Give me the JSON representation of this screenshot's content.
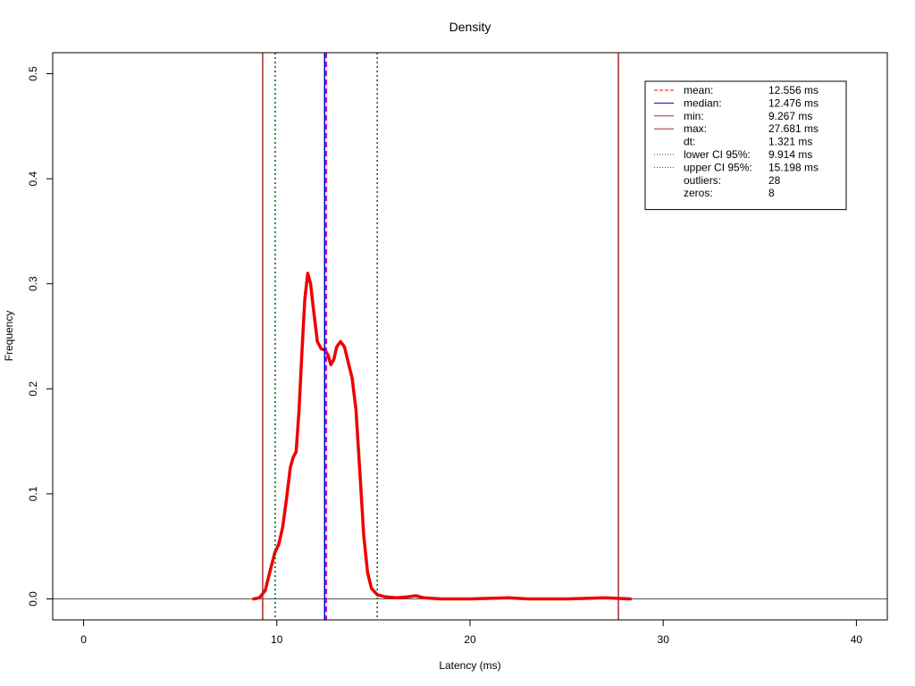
{
  "chart_data": {
    "type": "line",
    "title": "Density",
    "xlabel": "Latency (ms)",
    "ylabel": "Frequency",
    "xlim": [
      -1.6,
      41.6
    ],
    "ylim": [
      -0.02,
      0.52
    ],
    "x_ticks": [
      "0",
      "10",
      "20",
      "30",
      "40"
    ],
    "y_ticks": [
      "0.0",
      "0.1",
      "0.2",
      "0.3",
      "0.4",
      "0.5"
    ],
    "grid": false,
    "legend_position": "top-right",
    "baseline": 0,
    "density": {
      "color": "#ee0000",
      "points": [
        [
          8.8,
          0.0
        ],
        [
          9.1,
          0.001
        ],
        [
          9.4,
          0.008
        ],
        [
          9.7,
          0.03
        ],
        [
          9.9,
          0.044
        ],
        [
          10.1,
          0.052
        ],
        [
          10.3,
          0.068
        ],
        [
          10.5,
          0.095
        ],
        [
          10.7,
          0.125
        ],
        [
          10.85,
          0.135
        ],
        [
          11.0,
          0.14
        ],
        [
          11.15,
          0.18
        ],
        [
          11.3,
          0.235
        ],
        [
          11.45,
          0.285
        ],
        [
          11.6,
          0.31
        ],
        [
          11.75,
          0.3
        ],
        [
          11.9,
          0.275
        ],
        [
          12.1,
          0.245
        ],
        [
          12.3,
          0.238
        ],
        [
          12.5,
          0.237
        ],
        [
          12.65,
          0.232
        ],
        [
          12.8,
          0.223
        ],
        [
          12.95,
          0.228
        ],
        [
          13.1,
          0.24
        ],
        [
          13.3,
          0.245
        ],
        [
          13.5,
          0.24
        ],
        [
          13.7,
          0.225
        ],
        [
          13.9,
          0.21
        ],
        [
          14.1,
          0.18
        ],
        [
          14.3,
          0.12
        ],
        [
          14.5,
          0.06
        ],
        [
          14.7,
          0.025
        ],
        [
          14.9,
          0.01
        ],
        [
          15.2,
          0.004
        ],
        [
          15.6,
          0.002
        ],
        [
          16.2,
          0.001
        ],
        [
          16.8,
          0.002
        ],
        [
          17.2,
          0.003
        ],
        [
          17.6,
          0.001
        ],
        [
          18.5,
          0.0
        ],
        [
          20.0,
          0.0
        ],
        [
          22.0,
          0.001
        ],
        [
          23.0,
          0.0
        ],
        [
          25.0,
          0.0
        ],
        [
          27.0,
          0.001
        ],
        [
          28.3,
          0.0
        ]
      ]
    },
    "vlines": [
      {
        "name": "mean",
        "x": 12.556,
        "color": "#ff0000",
        "style": "dashed"
      },
      {
        "name": "median",
        "x": 12.476,
        "color": "#0000cc",
        "style": "solid"
      },
      {
        "name": "min",
        "x": 9.267,
        "color": "#a52a2a",
        "style": "solid"
      },
      {
        "name": "max",
        "x": 27.681,
        "color": "#a52a2a",
        "style": "solid"
      },
      {
        "name": "lower CI 95%",
        "x": 9.914,
        "color": "#006400",
        "style": "dotted"
      },
      {
        "name": "upper CI 95%",
        "x": 15.198,
        "color": "#006400",
        "style": "dotted"
      }
    ],
    "mean_overlay": {
      "x": 12.556,
      "color": "#cc00cc",
      "style": "dashed"
    },
    "legend": [
      {
        "label": "mean:",
        "value": "12.556 ms",
        "color": "#ff0000",
        "style": "dashed"
      },
      {
        "label": "median:",
        "value": "12.476 ms",
        "color": "#0000cc",
        "style": "solid"
      },
      {
        "label": "min:",
        "value": "9.267 ms",
        "color": "#a52a2a",
        "style": "solid"
      },
      {
        "label": "max:",
        "value": "27.681 ms",
        "color": "#a52a2a",
        "style": "solid"
      },
      {
        "label": "dt:",
        "value": "1.321 ms",
        "color": "",
        "style": "none"
      },
      {
        "label": "lower CI 95%:",
        "value": "9.914 ms",
        "color": "#006400",
        "style": "dotted"
      },
      {
        "label": "upper CI 95%:",
        "value": "15.198 ms",
        "color": "#006400",
        "style": "dotted"
      },
      {
        "label": "outliers:",
        "value": "28",
        "color": "",
        "style": "none"
      },
      {
        "label": "zeros:",
        "value": "8",
        "color": "",
        "style": "none"
      }
    ]
  }
}
